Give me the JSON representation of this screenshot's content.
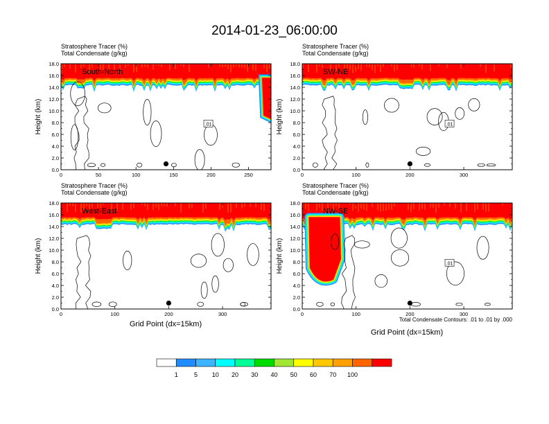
{
  "title": "2014-01-23_06:00:00",
  "panel_header_line1": "Stratosphere Tracer   (%)",
  "panel_header_line2": "Total Condensate   (g/kg)",
  "ylabel": "Height (km)",
  "xlabel": "Grid Point (dx=15km)",
  "contour_note": "Total Condensate Contours: .01 to .01 by .000",
  "colors": [
    "#ffffff",
    "#1e8cff",
    "#3cb4ff",
    "#00ffff",
    "#00ff96",
    "#00dc00",
    "#a0e632",
    "#ffff00",
    "#ffc800",
    "#ffa000",
    "#ff6400",
    "#ff0000"
  ],
  "colorbar_labels": [
    "1",
    "5",
    "10",
    "20",
    "30",
    "40",
    "50",
    "60",
    "70",
    "100"
  ],
  "chart_data": [
    {
      "type": "heatmap",
      "label": "South-North",
      "xlim": [
        0,
        280
      ],
      "xticks": [
        "0",
        "50",
        "100",
        "150",
        "200",
        "250"
      ],
      "ylim": [
        0,
        18
      ],
      "yticks": [
        "0.0",
        "2.0",
        "4.0",
        "6.0",
        "8.0",
        "10.0",
        "12.0",
        "14.0",
        "16.0",
        "18.0"
      ],
      "tropopause_km": 15.6,
      "contour_label": ".01",
      "marker_x": 140,
      "marker_y_km": 1.0
    },
    {
      "type": "heatmap",
      "label": "SW-NE",
      "xlim": [
        0,
        390
      ],
      "xticks": [
        "0",
        "100",
        "200",
        "300"
      ],
      "ylim": [
        0,
        18
      ],
      "yticks": [
        "0.0",
        "2.0",
        "4.0",
        "6.0",
        "8.0",
        "10.0",
        "12.0",
        "14.0",
        "16.0",
        "18.0"
      ],
      "tropopause_km": 15.6,
      "contour_label": ".01",
      "marker_x": 200,
      "marker_y_km": 1.0
    },
    {
      "type": "heatmap",
      "label": "West-East",
      "xlim": [
        0,
        390
      ],
      "xticks": [
        "0",
        "100",
        "200",
        "300"
      ],
      "ylim": [
        0,
        18
      ],
      "yticks": [
        "0.0",
        "2.0",
        "4.0",
        "6.0",
        "8.0",
        "10.0",
        "12.0",
        "14.0",
        "16.0",
        "18.0"
      ],
      "tropopause_km": 15.6,
      "contour_label": "",
      "marker_x": 200,
      "marker_y_km": 1.0
    },
    {
      "type": "heatmap",
      "label": "NW-SE",
      "xlim": [
        0,
        390
      ],
      "xticks": [
        "0",
        "100",
        "200",
        "300"
      ],
      "ylim": [
        0,
        18
      ],
      "yticks": [
        "0.0",
        "2.0",
        "4.0",
        "6.0",
        "8.0",
        "10.0",
        "12.0",
        "14.0",
        "16.0",
        "18.0"
      ],
      "tropopause_km": 15.6,
      "contour_label": ".01",
      "marker_x": 200,
      "marker_y_km": 1.0
    }
  ]
}
